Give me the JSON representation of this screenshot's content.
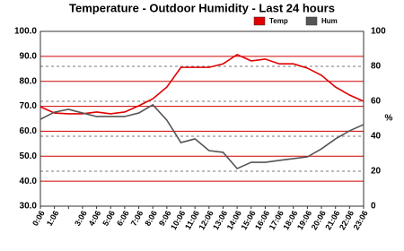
{
  "chart_data": {
    "type": "line",
    "title": "Temperature - Outdoor Humidity - Last 24 hours",
    "categories": [
      "0:06",
      "1:06",
      null,
      "3:06",
      "4:06",
      "5:06",
      "6:06",
      "7:06",
      "8:06",
      "9:06",
      "10:06",
      "11:06",
      "12:06",
      "13:06",
      "14:06",
      "15:06",
      "16:06",
      "17:06",
      "18:06",
      "19:06",
      "20:06",
      "21:06",
      "22:06",
      "23:06"
    ],
    "series": [
      {
        "name": "Temp",
        "color": "#e00000",
        "values": [
          69.8,
          67.3,
          67.0,
          67.0,
          67.7,
          67.0,
          67.7,
          70.2,
          73.0,
          77.7,
          85.6,
          85.6,
          85.6,
          87.0,
          90.7,
          88.2,
          88.9,
          87.0,
          87.0,
          85.3,
          82.4,
          77.7,
          74.5,
          72.0
        ]
      },
      {
        "name": "Hum",
        "color": "#555555",
        "axis": "y2",
        "values": [
          49.7,
          53.8,
          55.4,
          53.3,
          51.3,
          51.3,
          51.3,
          53.3,
          58.0,
          49.2,
          36.4,
          38.5,
          31.8,
          30.8,
          21.5,
          25.1,
          25.1,
          26.2,
          27.2,
          28.2,
          32.8,
          38.5,
          43.1,
          46.7
        ]
      }
    ],
    "ylim": [
      30,
      100
    ],
    "yticks": [
      {
        "value": 30,
        "label": "30.0"
      },
      {
        "value": 40,
        "label": "40.0"
      },
      {
        "value": 50,
        "label": "50.0"
      },
      {
        "value": 60,
        "label": "60.0"
      },
      {
        "value": 70,
        "label": "70.0"
      },
      {
        "value": 80,
        "label": "80.0"
      },
      {
        "value": 90,
        "label": "90.0"
      },
      {
        "value": 100,
        "label": "100.0"
      }
    ],
    "y2lim": [
      0,
      100
    ],
    "y2ticks": [
      0,
      20,
      40,
      60,
      80,
      100
    ],
    "y2label": "%",
    "grid": true,
    "legend": "top-right"
  }
}
